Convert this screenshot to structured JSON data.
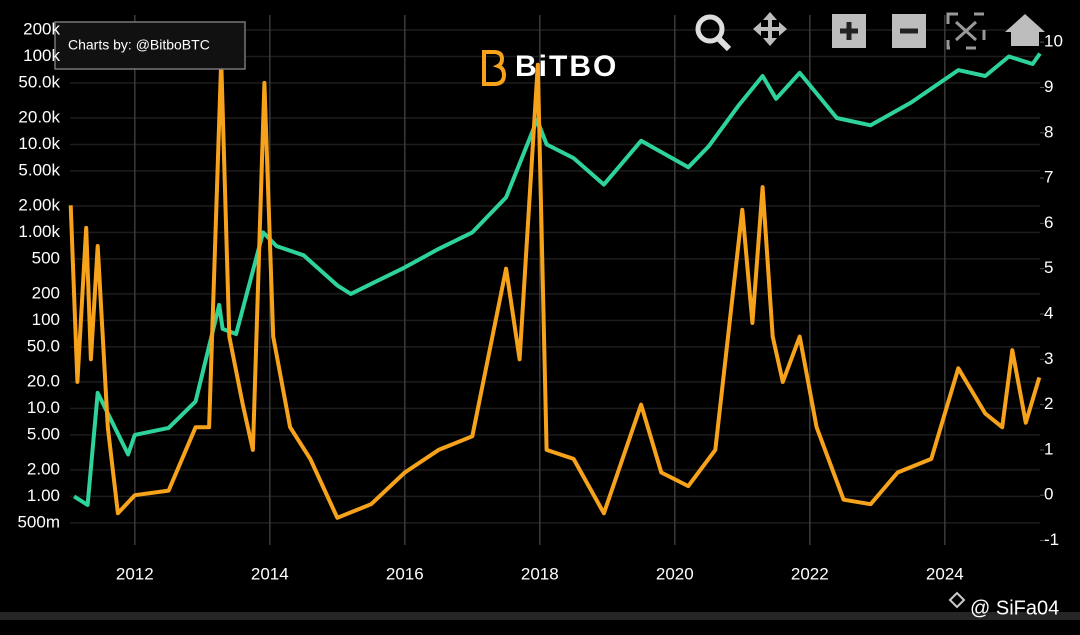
{
  "chart_data": {
    "type": "line",
    "annotations": {
      "credit": "Charts by: @BitboBTC",
      "brand": "BiTBO",
      "watermark": "@ SiFa04"
    },
    "xlim": [
      2011.04,
      2025.41
    ],
    "xticks": [
      2012,
      2014,
      2016,
      2018,
      2020,
      2022,
      2024
    ],
    "ylim": [
      0.28,
      296000
    ],
    "ylog": true,
    "yticks": [
      {
        "value": 0.5,
        "label": "500m"
      },
      {
        "value": 1,
        "label": "1.00"
      },
      {
        "value": 2,
        "label": "2.00"
      },
      {
        "value": 5,
        "label": "5.00"
      },
      {
        "value": 10,
        "label": "10.0"
      },
      {
        "value": 20,
        "label": "20.0"
      },
      {
        "value": 50,
        "label": "50.0"
      },
      100,
      200,
      500,
      {
        "value": 1000,
        "label": "1.00k"
      },
      {
        "value": 2000,
        "label": "2.00k"
      },
      {
        "value": 5000,
        "label": "5.00k"
      },
      {
        "value": 10000,
        "label": "10.0k"
      },
      {
        "value": 20000,
        "label": "20.0k"
      },
      {
        "value": 50000,
        "label": "50.0k"
      },
      {
        "value": 100000,
        "label": "100k"
      },
      {
        "value": 200000,
        "label": "200k"
      }
    ],
    "y2lim": [
      -1.1,
      10.6
    ],
    "y2ticks": [
      -1,
      0,
      1,
      2,
      3,
      4,
      5,
      6,
      7,
      8,
      9,
      10
    ],
    "grid": true,
    "series": [
      {
        "color": "#2ed39a",
        "x": [
          2011.1,
          2011.3,
          2011.45,
          2011.9,
          2012.0,
          2012.5,
          2012.9,
          2013.25,
          2013.3,
          2013.5,
          2013.9,
          2014.1,
          2014.5,
          2015.0,
          2015.2,
          2015.5,
          2016.0,
          2016.5,
          2017.0,
          2017.5,
          2017.96,
          2018.1,
          2018.5,
          2018.95,
          2019.5,
          2020.2,
          2020.5,
          2020.95,
          2021.3,
          2021.5,
          2021.85,
          2022.4,
          2022.9,
          2023.5,
          2024.2,
          2024.6,
          2024.95,
          2025.3,
          2025.41
        ],
        "values": [
          1.0,
          0.8,
          15,
          3,
          5,
          6,
          12,
          150,
          80,
          70,
          1000,
          700,
          550,
          250,
          200,
          260,
          400,
          650,
          1000,
          2500,
          19000,
          10000,
          7000,
          3500,
          11000,
          5500,
          9500,
          28000,
          60000,
          33000,
          65000,
          20000,
          16500,
          30000,
          70000,
          60000,
          100000,
          82000,
          108000
        ]
      },
      {
        "color": "#f7a21b",
        "axis": "y2",
        "x": [
          2011.05,
          2011.15,
          2011.28,
          2011.35,
          2011.45,
          2011.6,
          2011.75,
          2012.0,
          2012.5,
          2012.9,
          2013.1,
          2013.28,
          2013.4,
          2013.6,
          2013.75,
          2013.92,
          2014.05,
          2014.3,
          2014.6,
          2015.0,
          2015.5,
          2016.0,
          2016.5,
          2017.0,
          2017.5,
          2017.7,
          2017.97,
          2018.1,
          2018.5,
          2018.95,
          2019.5,
          2019.8,
          2020.2,
          2020.6,
          2021.0,
          2021.15,
          2021.3,
          2021.45,
          2021.6,
          2021.85,
          2022.1,
          2022.5,
          2022.9,
          2023.3,
          2023.8,
          2024.2,
          2024.6,
          2024.85,
          2025.0,
          2025.2,
          2025.4
        ],
        "values": [
          6.4,
          2.5,
          5.9,
          3.0,
          5.5,
          1.5,
          -0.4,
          0.0,
          0.1,
          1.5,
          1.5,
          9.6,
          3.5,
          2.0,
          1.0,
          9.1,
          3.5,
          1.5,
          0.8,
          -0.5,
          -0.2,
          0.5,
          1.0,
          1.3,
          5.0,
          3.0,
          9.5,
          1.0,
          0.8,
          -0.4,
          2.0,
          0.5,
          0.2,
          1.0,
          6.3,
          3.8,
          6.8,
          3.5,
          2.5,
          3.5,
          1.5,
          -0.1,
          -0.2,
          0.5,
          0.8,
          2.8,
          1.8,
          1.5,
          3.2,
          1.6,
          2.6
        ]
      }
    ]
  }
}
